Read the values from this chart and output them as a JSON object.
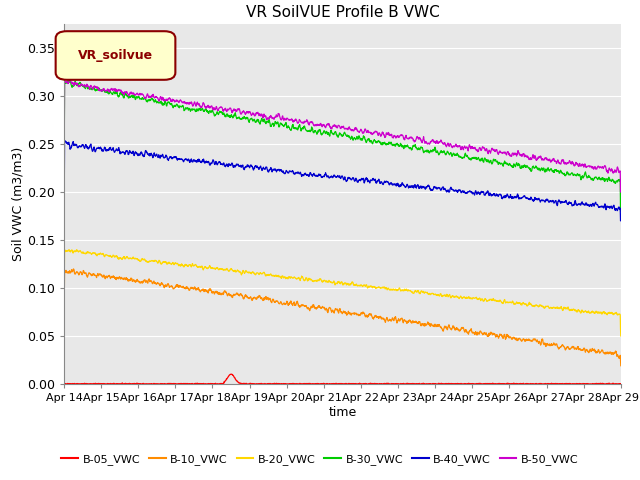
{
  "title": "VR SoilVUE Profile B VWC",
  "ylabel": "Soil VWC (m3/m3)",
  "xlabel": "time",
  "ylim": [
    0.0,
    0.375
  ],
  "yticks": [
    0.0,
    0.05,
    0.1,
    0.15,
    0.2,
    0.25,
    0.3,
    0.35
  ],
  "xtick_labels": [
    "Apr 14",
    "Apr 15",
    "Apr 16",
    "Apr 17",
    "Apr 18",
    "Apr 19",
    "Apr 20",
    "Apr 21",
    "Apr 22",
    "Apr 23",
    "Apr 24",
    "Apr 25",
    "Apr 26",
    "Apr 27",
    "Apr 28",
    "Apr 29"
  ],
  "legend_label": "VR_soilvue",
  "legend_box_color": "#FFFFCC",
  "legend_text_color": "#8B0000",
  "series_colors": {
    "B-05_VWC": "#FF0000",
    "B-10_VWC": "#FF8C00",
    "B-20_VWC": "#FFD700",
    "B-30_VWC": "#00CC00",
    "B-40_VWC": "#0000CD",
    "B-50_VWC": "#CC00CC"
  },
  "background_color": "#E8E8E8",
  "grid_color": "#FFFFFF",
  "n_points": 2000,
  "figsize": [
    6.4,
    4.8
  ],
  "dpi": 100
}
